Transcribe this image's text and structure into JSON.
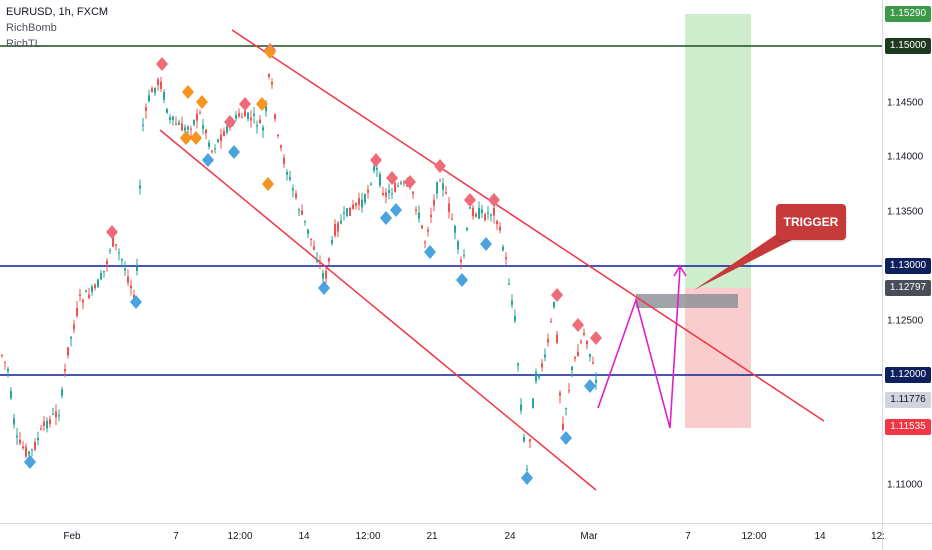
{
  "legend": {
    "symbol": "EURUSD, 1h, FXCM",
    "indicator1": "RichBomb",
    "indicator2": "RichTL"
  },
  "annotation": {
    "trigger_label": "TRIGGER"
  },
  "price_axis": {
    "ticks": [
      "1.14500",
      "1.14000",
      "1.13500",
      "1.12500",
      "1.11000"
    ],
    "badges": [
      {
        "label": "1.15290",
        "color": "#3a9a47"
      },
      {
        "label": "1.15000",
        "color": "#1e3a1e"
      },
      {
        "label": "1.13000",
        "color": "#0d1f5c"
      },
      {
        "label": "1.12797",
        "color": "#4a4d57"
      },
      {
        "label": "1.12000",
        "color": "#0d1f5c"
      },
      {
        "label": "1.11776",
        "color": "#d1d4dc",
        "text_color": "#131722"
      },
      {
        "label": "1.11535",
        "color": "#f23645"
      }
    ]
  },
  "time_axis": {
    "labels": [
      "Feb",
      "7",
      "12:00",
      "14",
      "12:00",
      "21",
      "24",
      "Mar",
      "7",
      "12:00",
      "14",
      "12:"
    ]
  },
  "colors": {
    "up_candle": "#26a69a",
    "down_candle": "#ef5350",
    "channel_line": "#f23645",
    "horizontal_blue": "#0d1f9a",
    "horizontal_green": "#1e4d1e",
    "projection": "#e020c8",
    "target_zone": "#c8ebc8",
    "stop_zone": "#f8c8c8"
  }
}
